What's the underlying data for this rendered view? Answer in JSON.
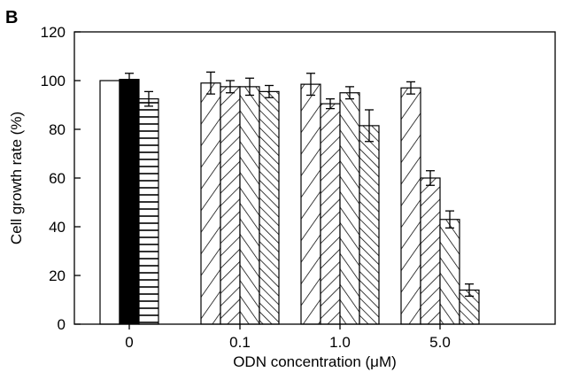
{
  "panel_label": "B",
  "chart_data": {
    "type": "bar",
    "xlabel": "ODN concentration (μM)",
    "ylabel": "Cell growth rate (%)",
    "ylim": [
      0,
      120
    ],
    "yticks": [
      0,
      20,
      40,
      60,
      80,
      100,
      120
    ],
    "grid": false,
    "groups": [
      {
        "label": "0",
        "bars": [
          {
            "value": 100,
            "error": 0,
            "fill": "white"
          },
          {
            "value": 100.5,
            "error": 2.5,
            "fill": "black"
          },
          {
            "value": 92.5,
            "error": 3,
            "fill": "horizontal"
          }
        ]
      },
      {
        "label": "0.1",
        "bars": [
          {
            "value": 99,
            "error": 4.5,
            "fill": "hatch-forward"
          },
          {
            "value": 97.5,
            "error": 2.5,
            "fill": "hatch-forward-dense"
          },
          {
            "value": 97.5,
            "error": 3.5,
            "fill": "hatch-back"
          },
          {
            "value": 95.5,
            "error": 2.5,
            "fill": "hatch-back-dense"
          }
        ]
      },
      {
        "label": "1.0",
        "bars": [
          {
            "value": 98.5,
            "error": 4.5,
            "fill": "hatch-forward"
          },
          {
            "value": 90.5,
            "error": 2,
            "fill": "hatch-forward-dense"
          },
          {
            "value": 95,
            "error": 2.5,
            "fill": "hatch-back"
          },
          {
            "value": 81.5,
            "error": 6.5,
            "fill": "hatch-back-dense"
          }
        ]
      },
      {
        "label": "5.0",
        "bars": [
          {
            "value": 97,
            "error": 2.5,
            "fill": "hatch-forward"
          },
          {
            "value": 60,
            "error": 3,
            "fill": "hatch-forward-dense"
          },
          {
            "value": 43,
            "error": 3.5,
            "fill": "hatch-back"
          },
          {
            "value": 14,
            "error": 2.5,
            "fill": "hatch-back-dense"
          }
        ]
      }
    ]
  }
}
